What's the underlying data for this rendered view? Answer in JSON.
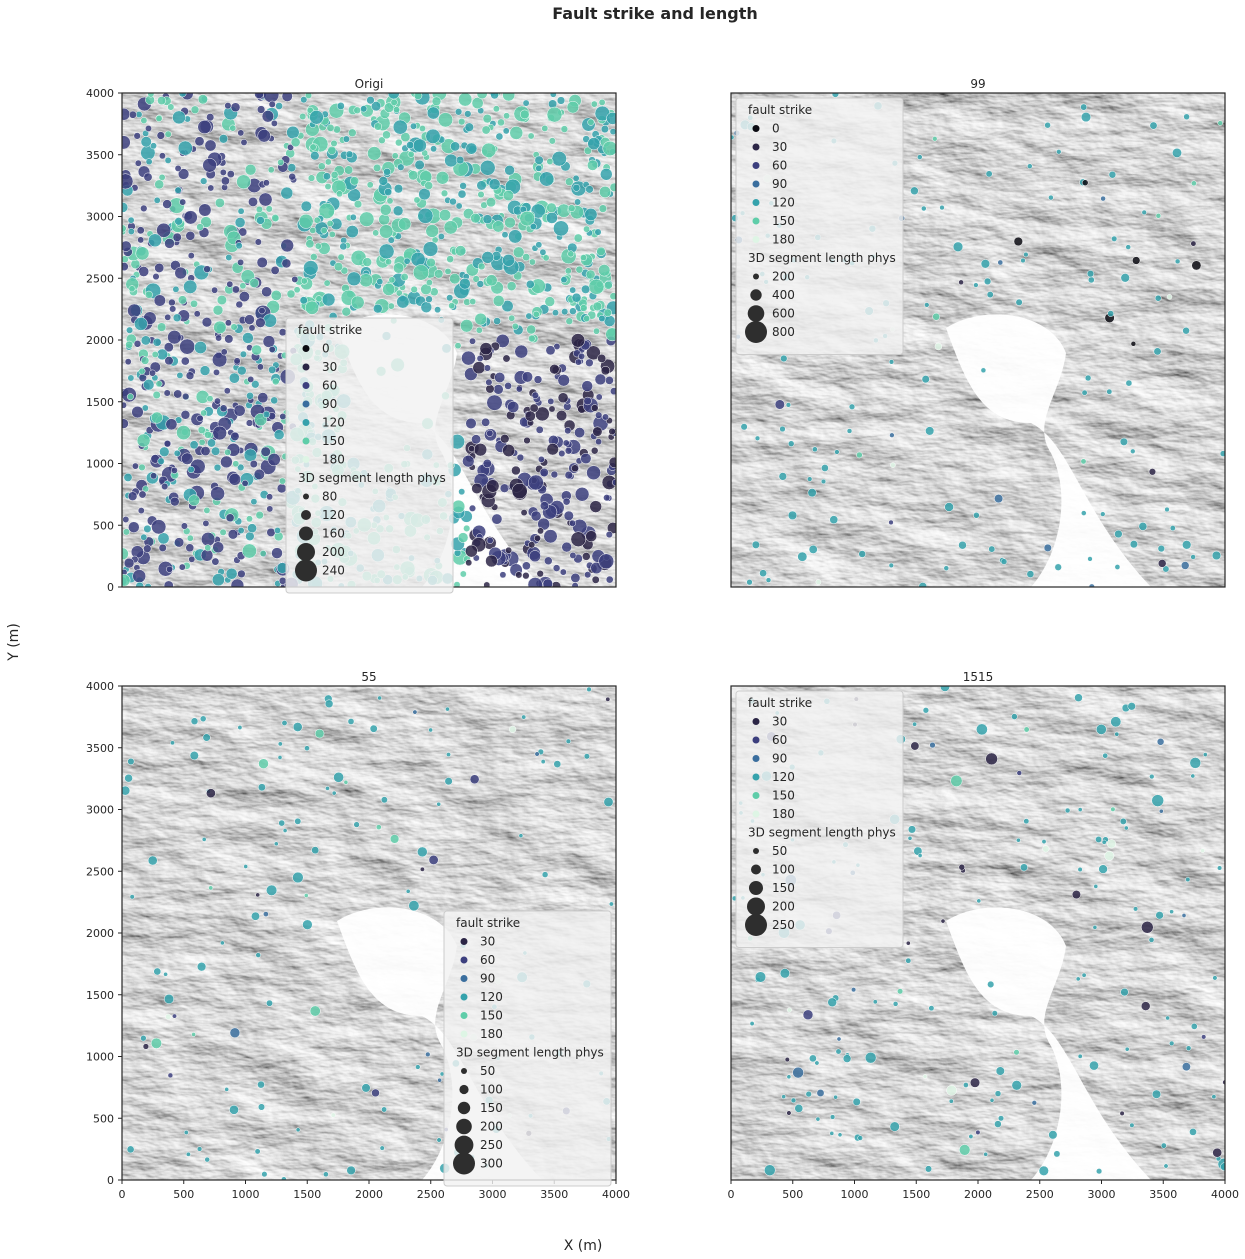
{
  "figure": {
    "suptitle": "Fault strike and length",
    "xlabel": "X (m)",
    "ylabel": "Y (m)"
  },
  "colors": {
    "palette_0": "#0b0b12",
    "palette_30": "#2b2545",
    "palette_60": "#3c3f7e",
    "palette_90": "#3a6e9e",
    "palette_120": "#35a2ac",
    "palette_150": "#5fcda9",
    "palette_180": "#def5e5",
    "size_marker": "#2e2e2e",
    "hillshade_dark": "#1a1a1a",
    "hillshade_light": "#f5f5f5"
  },
  "chart_data": [
    {
      "type": "scatter",
      "title": "Origi",
      "xlim": [
        0,
        4000
      ],
      "ylim": [
        0,
        4000
      ],
      "xticks": [
        "0",
        "500",
        "1000",
        "1500",
        "2000",
        "2500",
        "3000",
        "3500",
        "4000"
      ],
      "yticks": [
        "0",
        "500",
        "1000",
        "1500",
        "2000",
        "2500",
        "3000",
        "3500",
        "4000"
      ],
      "show_xticks": false,
      "show_yticks": true,
      "background": "hillshade",
      "legend": {
        "placement": "center",
        "hue_title": "fault strike",
        "hue_entries": [
          "0",
          "30",
          "60",
          "90",
          "120",
          "150",
          "180"
        ],
        "size_title": "3D segment length phys",
        "size_entries": [
          "80",
          "120",
          "160",
          "200",
          "240"
        ]
      },
      "density": "dense",
      "seed": 11,
      "count": 1700,
      "size_range": [
        40,
        250
      ]
    },
    {
      "type": "scatter",
      "title": "99",
      "xlim": [
        0,
        4000
      ],
      "ylim": [
        0,
        4000
      ],
      "xticks": [
        "0",
        "500",
        "1000",
        "1500",
        "2000",
        "2500",
        "3000",
        "3500",
        "4000"
      ],
      "yticks": [
        "0",
        "500",
        "1000",
        "1500",
        "2000",
        "2500",
        "3000",
        "3500",
        "4000"
      ],
      "show_xticks": false,
      "show_yticks": false,
      "background": "hillshade",
      "legend": {
        "placement": "upper left",
        "hue_title": "fault strike",
        "hue_entries": [
          "0",
          "30",
          "60",
          "90",
          "120",
          "150",
          "180"
        ],
        "size_title": "3D segment length phys",
        "size_entries": [
          "200",
          "400",
          "600",
          "800"
        ]
      },
      "density": "sparse",
      "seed": 23,
      "count": 170,
      "size_range": [
        40,
        160
      ]
    },
    {
      "type": "scatter",
      "title": "55",
      "xlim": [
        0,
        4000
      ],
      "ylim": [
        0,
        4000
      ],
      "xticks": [
        "0",
        "500",
        "1000",
        "1500",
        "2000",
        "2500",
        "3000",
        "3500",
        "4000"
      ],
      "yticks": [
        "0",
        "500",
        "1000",
        "1500",
        "2000",
        "2500",
        "3000",
        "3500",
        "4000"
      ],
      "show_xticks": true,
      "show_yticks": true,
      "background": "hillshade",
      "legend": {
        "placement": "lower right",
        "hue_title": "fault strike",
        "hue_entries": [
          "30",
          "60",
          "90",
          "120",
          "150",
          "180"
        ],
        "size_title": "3D segment length phys",
        "size_entries": [
          "50",
          "100",
          "150",
          "200",
          "250",
          "300"
        ]
      },
      "density": "sparse",
      "seed": 37,
      "count": 150,
      "size_range": [
        30,
        200
      ]
    },
    {
      "type": "scatter",
      "title": "1515",
      "xlim": [
        0,
        4000
      ],
      "ylim": [
        0,
        4000
      ],
      "xticks": [
        "0",
        "500",
        "1000",
        "1500",
        "2000",
        "2500",
        "3000",
        "3500",
        "4000"
      ],
      "yticks": [
        "0",
        "500",
        "1000",
        "1500",
        "2000",
        "2500",
        "3000",
        "3500",
        "4000"
      ],
      "show_xticks": true,
      "show_yticks": false,
      "background": "hillshade",
      "legend": {
        "placement": "upper left",
        "hue_title": "fault strike",
        "hue_entries": [
          "30",
          "60",
          "90",
          "120",
          "150",
          "180"
        ],
        "size_title": "3D segment length phys",
        "size_entries": [
          "50",
          "100",
          "150",
          "200",
          "250"
        ]
      },
      "density": "medium",
      "seed": 53,
      "count": 190,
      "size_range": [
        30,
        250
      ]
    }
  ]
}
